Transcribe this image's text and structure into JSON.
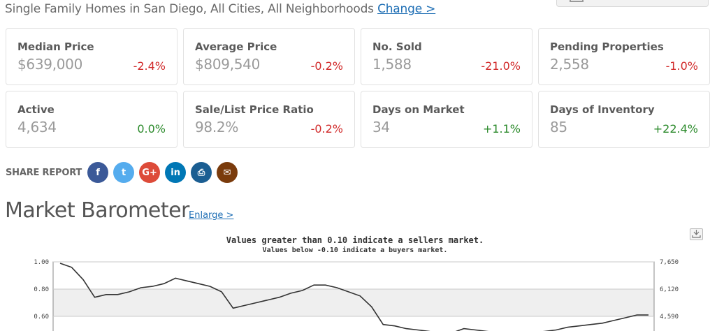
{
  "header": {
    "subtitle": "Single Family Homes in San Diego, All Cities, All Neighborhoods",
    "change_link": "Change >"
  },
  "stats": [
    {
      "label": "Median Price",
      "value": "$639,000",
      "change": "-2.4%",
      "trend": "negative"
    },
    {
      "label": "Average Price",
      "value": "$809,540",
      "change": "-0.2%",
      "trend": "negative"
    },
    {
      "label": "No. Sold",
      "value": "1,588",
      "change": "-21.0%",
      "trend": "negative"
    },
    {
      "label": "Pending Properties",
      "value": "2,558",
      "change": "-1.0%",
      "trend": "negative"
    },
    {
      "label": "Active",
      "value": "4,634",
      "change": "0.0%",
      "trend": "positive"
    },
    {
      "label": "Sale/List Price Ratio",
      "value": "98.2%",
      "change": "-0.2%",
      "trend": "negative"
    },
    {
      "label": "Days on Market",
      "value": "34",
      "change": "+1.1%",
      "trend": "positive"
    },
    {
      "label": "Days of Inventory",
      "value": "85",
      "change": "+22.4%",
      "trend": "positive"
    }
  ],
  "share": {
    "label": "SHARE REPORT",
    "icons": [
      {
        "name": "facebook-icon",
        "glyph": "f",
        "color": "#3b5998"
      },
      {
        "name": "twitter-icon",
        "glyph": "t",
        "color": "#55acee"
      },
      {
        "name": "google-plus-icon",
        "glyph": "G+",
        "color": "#dd4b39"
      },
      {
        "name": "linkedin-icon",
        "glyph": "in",
        "color": "#0077b5"
      },
      {
        "name": "print-icon",
        "glyph": "⎙",
        "color": "#1b5e92"
      },
      {
        "name": "email-icon",
        "glyph": "✉",
        "color": "#7a3b0c"
      }
    ]
  },
  "barometer": {
    "title": "Market Barometer",
    "enlarge_link": "Enlarge >"
  },
  "colors": {
    "negative": "#d12a2a",
    "positive": "#2b8a2b",
    "link": "#1f6fb5"
  },
  "chart_data": {
    "type": "line",
    "title": "Values greater than 0.10 indicate a sellers market.",
    "subtitle": "Values below -0.10 indicate a buyers market.",
    "y_left_ticks": [
      "1.00",
      "0.80",
      "0.60"
    ],
    "y_right_ticks": [
      "7,650",
      "6,120",
      "4,590"
    ],
    "ylim_visible": [
      0.55,
      1.0
    ],
    "grid": true,
    "series": [
      {
        "values": [
          0.99,
          0.96,
          0.87,
          0.74,
          0.76,
          0.76,
          0.78,
          0.81,
          0.82,
          0.84,
          0.88,
          0.86,
          0.84,
          0.82,
          0.78,
          0.66,
          0.68,
          0.7,
          0.72,
          0.74,
          0.77,
          0.79,
          0.83,
          0.83,
          0.81,
          0.78,
          0.75,
          0.67,
          0.54,
          0.53,
          0.51,
          0.5,
          0.49,
          0.47,
          0.48,
          0.51,
          0.5,
          0.49,
          0.48,
          0.47,
          0.47,
          0.48,
          0.49,
          0.5,
          0.52,
          0.53,
          0.54,
          0.55,
          0.57,
          0.59,
          0.61,
          0.61
        ]
      }
    ]
  }
}
